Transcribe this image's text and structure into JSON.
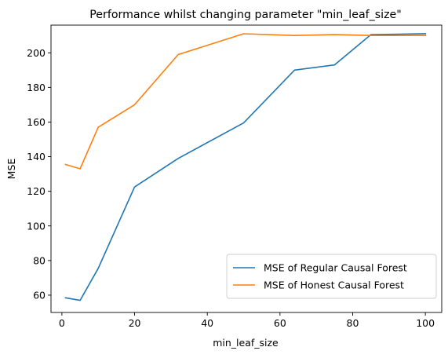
{
  "chart_data": {
    "type": "line",
    "title": "Performance whilst changing parameter \"min_leaf_size\"",
    "xlabel": "min_leaf_size",
    "ylabel": "MSE",
    "xlim": [
      -3,
      104.5
    ],
    "ylim": [
      50,
      216
    ],
    "xticks": [
      0,
      20,
      40,
      60,
      80,
      100
    ],
    "yticks": [
      60,
      80,
      100,
      120,
      140,
      160,
      180,
      200
    ],
    "grid": false,
    "legend_position": "lower-right",
    "series": [
      {
        "name": "MSE of Regular Causal Forest",
        "color": "#1f77b4",
        "x": [
          1,
          5,
          10,
          20,
          32,
          50,
          64,
          75,
          85,
          100
        ],
        "y": [
          58.5,
          57,
          75.5,
          122.5,
          139,
          159.5,
          190,
          193,
          210.5,
          211
        ]
      },
      {
        "name": "MSE of Honest Causal Forest",
        "color": "#ff7f0e",
        "x": [
          1,
          5,
          10,
          20,
          32,
          50,
          64,
          75,
          85,
          100
        ],
        "y": [
          135.5,
          133,
          157,
          170,
          199,
          211,
          210,
          210.5,
          210,
          210
        ]
      }
    ]
  }
}
